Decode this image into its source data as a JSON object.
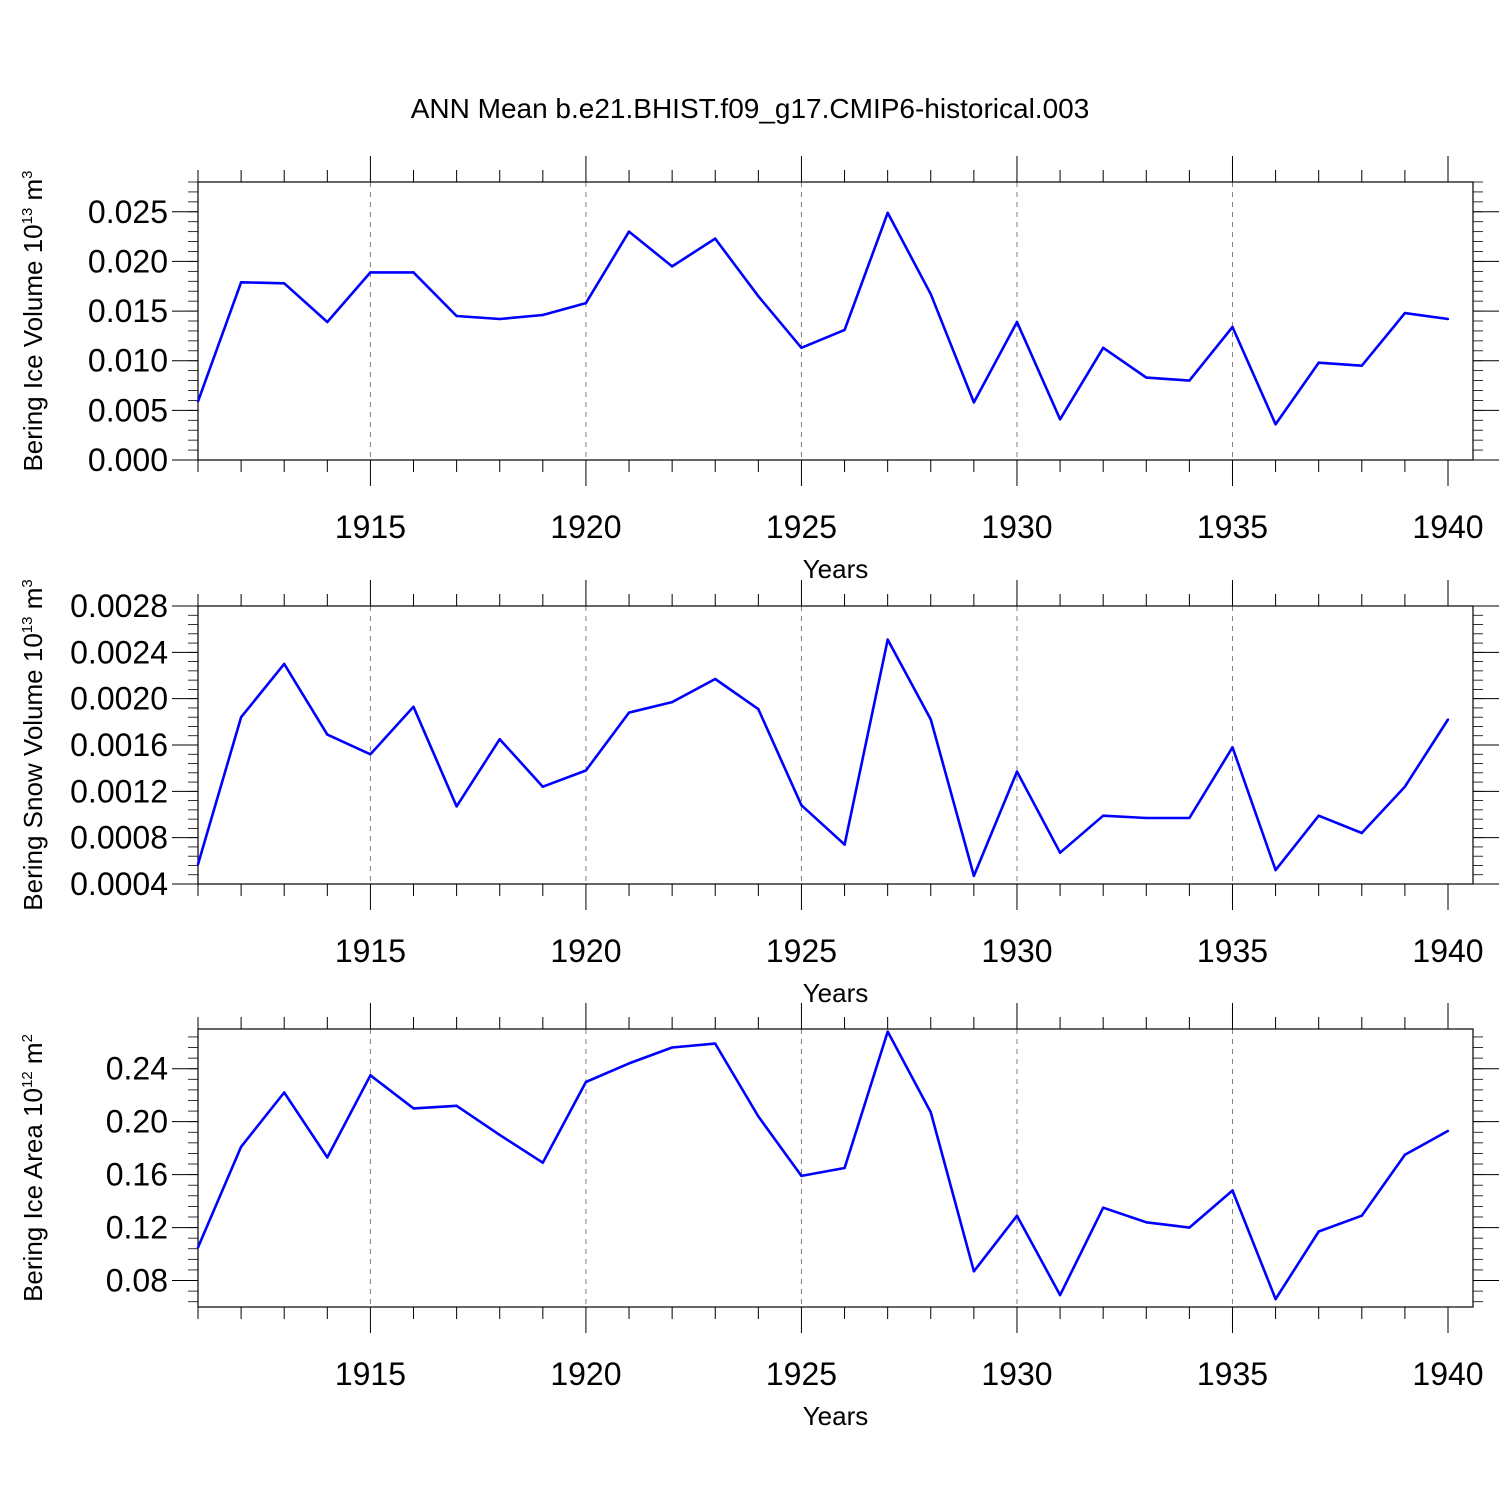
{
  "page": {
    "title": "ANN Mean b.e21.BHIST.f09_g17.CMIP6-historical.003"
  },
  "style": {
    "line_color": "#0000ff",
    "axis_color": "#000000",
    "grid_color": "#808080"
  },
  "chart_data": [
    {
      "type": "line",
      "ylabel_main": "Bering Ice Volume 10",
      "ylabel_exp": "13",
      "ylabel_unit": " m",
      "ylabel_unit_exp": "3",
      "xlabel": "Years",
      "xlim": [
        1911,
        1940
      ],
      "ylim": [
        0.0,
        0.028
      ],
      "yticks": [
        0.0,
        0.005,
        0.01,
        0.015,
        0.02,
        0.025
      ],
      "ytick_labels": [
        "0.000",
        "0.005",
        "0.010",
        "0.015",
        "0.020",
        "0.025"
      ],
      "xticks": [
        1915,
        1920,
        1925,
        1930,
        1935,
        1940
      ],
      "xtick_labels": [
        "1915",
        "1920",
        "1925",
        "1930",
        "1935",
        "1940"
      ],
      "grid": "vertical dashed at major x ticks",
      "series": [
        {
          "name": "Bering Ice Volume",
          "x": [
            1911,
            1912,
            1913,
            1914,
            1915,
            1916,
            1917,
            1918,
            1919,
            1920,
            1921,
            1922,
            1923,
            1924,
            1925,
            1926,
            1927,
            1928,
            1929,
            1930,
            1931,
            1932,
            1933,
            1934,
            1935,
            1936,
            1937,
            1938,
            1939,
            1940
          ],
          "values": [
            0.0059,
            0.0179,
            0.0178,
            0.0139,
            0.0189,
            0.0189,
            0.0145,
            0.0142,
            0.0146,
            0.0158,
            0.023,
            0.0195,
            0.0223,
            0.0165,
            0.0113,
            0.0131,
            0.0249,
            0.0167,
            0.0058,
            0.0139,
            0.0041,
            0.0113,
            0.0083,
            0.008,
            0.0134,
            0.0036,
            0.0098,
            0.0095,
            0.0148,
            0.0142
          ]
        }
      ]
    },
    {
      "type": "line",
      "ylabel_main": "Bering Snow Volume 10",
      "ylabel_exp": "13",
      "ylabel_unit": " m",
      "ylabel_unit_exp": "3",
      "xlabel": "Years",
      "xlim": [
        1911,
        1940
      ],
      "ylim": [
        0.0004,
        0.0028
      ],
      "yticks": [
        0.0004,
        0.0008,
        0.0012,
        0.0016,
        0.002,
        0.0024,
        0.0028
      ],
      "ytick_labels": [
        "0.0004",
        "0.0008",
        "0.0012",
        "0.0016",
        "0.0020",
        "0.0024",
        "0.0028"
      ],
      "xticks": [
        1915,
        1920,
        1925,
        1930,
        1935,
        1940
      ],
      "xtick_labels": [
        "1915",
        "1920",
        "1925",
        "1930",
        "1935",
        "1940"
      ],
      "grid": "vertical dashed at major x ticks",
      "series": [
        {
          "name": "Bering Snow Volume",
          "x": [
            1911,
            1912,
            1913,
            1914,
            1915,
            1916,
            1917,
            1918,
            1919,
            1920,
            1921,
            1922,
            1923,
            1924,
            1925,
            1926,
            1927,
            1928,
            1929,
            1930,
            1931,
            1932,
            1933,
            1934,
            1935,
            1936,
            1937,
            1938,
            1939,
            1940
          ],
          "values": [
            0.00057,
            0.00184,
            0.0023,
            0.00169,
            0.00152,
            0.00193,
            0.00107,
            0.00165,
            0.00124,
            0.00138,
            0.00188,
            0.00197,
            0.00217,
            0.00191,
            0.00108,
            0.00074,
            0.00251,
            0.00182,
            0.00047,
            0.00137,
            0.00067,
            0.00099,
            0.00097,
            0.00097,
            0.00158,
            0.00052,
            0.00099,
            0.00084,
            0.00124,
            0.00182
          ]
        }
      ]
    },
    {
      "type": "line",
      "ylabel_main": "Bering Ice Area 10",
      "ylabel_exp": "12",
      "ylabel_unit": " m",
      "ylabel_unit_exp": "2",
      "xlabel": "Years",
      "xlim": [
        1911,
        1940
      ],
      "ylim": [
        0.06,
        0.27
      ],
      "yticks": [
        0.08,
        0.12,
        0.16,
        0.2,
        0.24
      ],
      "ytick_labels": [
        "0.08",
        "0.12",
        "0.16",
        "0.20",
        "0.24"
      ],
      "xticks": [
        1915,
        1920,
        1925,
        1930,
        1935,
        1940
      ],
      "xtick_labels": [
        "1915",
        "1920",
        "1925",
        "1930",
        "1935",
        "1940"
      ],
      "grid": "vertical dashed at major x ticks",
      "series": [
        {
          "name": "Bering Ice Area",
          "x": [
            1911,
            1912,
            1913,
            1914,
            1915,
            1916,
            1917,
            1918,
            1919,
            1920,
            1921,
            1922,
            1923,
            1924,
            1925,
            1926,
            1927,
            1928,
            1929,
            1930,
            1931,
            1932,
            1933,
            1934,
            1935,
            1936,
            1937,
            1938,
            1939,
            1940
          ],
          "values": [
            0.105,
            0.181,
            0.222,
            0.173,
            0.235,
            0.21,
            0.212,
            0.19,
            0.169,
            0.23,
            0.244,
            0.256,
            0.259,
            0.204,
            0.159,
            0.165,
            0.268,
            0.207,
            0.087,
            0.129,
            0.069,
            0.135,
            0.124,
            0.12,
            0.148,
            0.066,
            0.117,
            0.129,
            0.175,
            0.193
          ]
        }
      ]
    }
  ]
}
